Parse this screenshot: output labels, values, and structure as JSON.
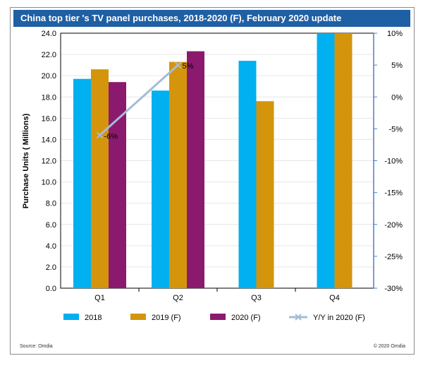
{
  "chart_data": {
    "type": "bar",
    "title": "China top tier 's TV panel purchases, 2018-2020 (F), February 2020 update",
    "categories": [
      "Q1",
      "Q2",
      "Q3",
      "Q4"
    ],
    "ylabel": "Purchase Units ( Millions)",
    "ylim": [
      0,
      24
    ],
    "yticks": [
      "0.0",
      "2.0",
      "4.0",
      "6.0",
      "8.0",
      "10.0",
      "12.0",
      "14.0",
      "16.0",
      "18.0",
      "20.0",
      "22.0",
      "24.0"
    ],
    "y2lim": [
      -30,
      10
    ],
    "y2ticks": [
      "-30%",
      "-25%",
      "-20%",
      "-15%",
      "-10%",
      "-5%",
      "0%",
      "5%",
      "10%"
    ],
    "series": [
      {
        "name": "2018",
        "color": "#00b0f0",
        "values": [
          19.7,
          18.6,
          21.4,
          24.0
        ]
      },
      {
        "name": "2019 (F)",
        "color": "#d4950c",
        "values": [
          20.6,
          21.3,
          17.6,
          24.0
        ]
      },
      {
        "name": "2020 (F)",
        "color": "#8b1a6e",
        "values": [
          19.4,
          22.3,
          null,
          null
        ]
      }
    ],
    "line_series": {
      "name": "Y/Y in 2020 (F)",
      "color": "#a5bcd6",
      "values": [
        -6,
        5,
        null,
        null
      ],
      "labels": [
        "-6%",
        "5%",
        "",
        ""
      ]
    }
  },
  "footer": {
    "source": "Source: Omdia",
    "copyright": "© 2020 Omdia"
  }
}
